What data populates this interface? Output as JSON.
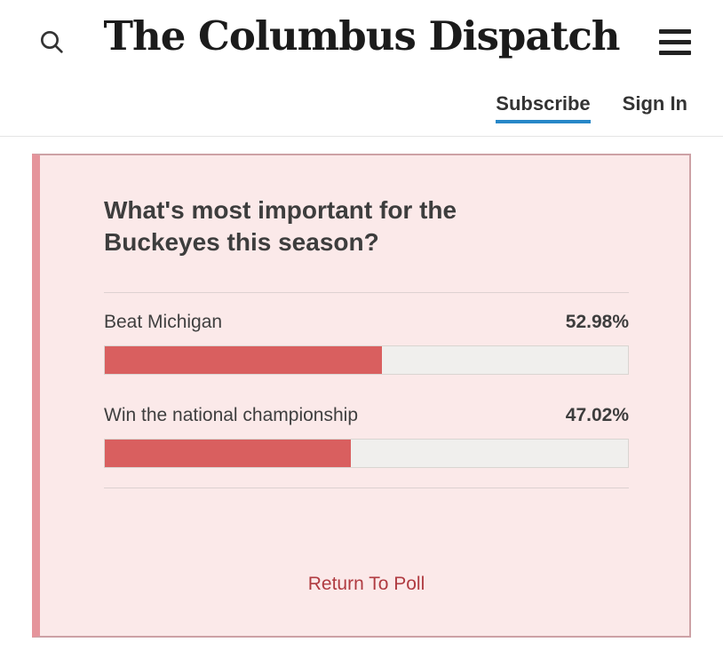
{
  "header": {
    "masthead": "The Columbus Dispatch",
    "subscribe_label": "Subscribe",
    "signin_label": "Sign In",
    "icons": {
      "search": "magnifying-glass",
      "menu": "hamburger"
    }
  },
  "poll": {
    "question": "What's most important for the Buckeyes this season?",
    "options": [
      {
        "label": "Beat Michigan",
        "percent": 52.98,
        "percent_label": "52.98%"
      },
      {
        "label": "Win the national championship",
        "percent": 47.02,
        "percent_label": "47.02%"
      }
    ],
    "return_label": "Return To Poll"
  },
  "colors": {
    "accent-blue": "#2787c8",
    "bar-red": "#d95f5f",
    "panel-bg": "#fbe9e9",
    "panel-border": "#cda1a5",
    "panel-left-border": "#e5949b",
    "panel-divider": "#ddd1d1",
    "track": "#f0efed",
    "track-border": "#d9d5d1",
    "link-red": "#b03b41",
    "header-divider": "#e5e5e5",
    "text-dark": "#3d3d3d",
    "masthead-ink": "#1b1b1b"
  }
}
